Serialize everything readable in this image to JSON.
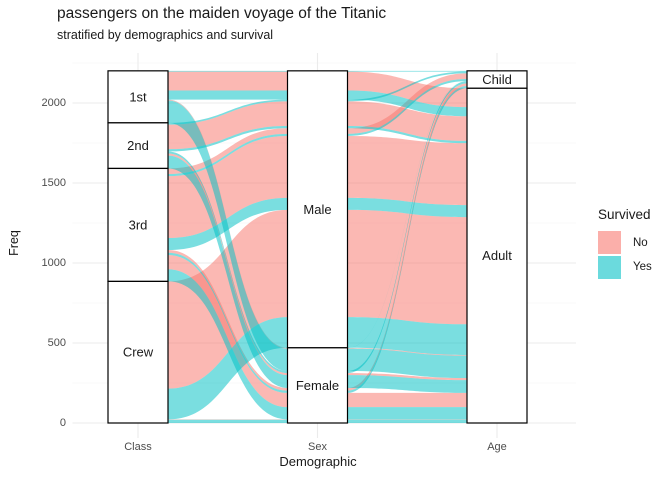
{
  "title": "passengers on the maiden voyage of the Titanic",
  "subtitle": "stratified by demographics and survival",
  "chart_data": {
    "type": "alluvial",
    "title": "passengers on the maiden voyage of the Titanic",
    "subtitle": "stratified by demographics and survival",
    "xlabel": "Demographic",
    "ylabel": "Freq",
    "yticks": [
      0,
      500,
      1000,
      1500,
      2000
    ],
    "y_minor": [
      250,
      750,
      1250,
      1750,
      2250
    ],
    "ylim": [
      0,
      2201
    ],
    "total": 2201,
    "grid": "on",
    "legend_position": "right",
    "axes": [
      {
        "name": "Class",
        "strata": [
          "1st",
          "2nd",
          "3rd",
          "Crew"
        ],
        "totals": [
          325,
          285,
          706,
          885
        ]
      },
      {
        "name": "Sex",
        "strata": [
          "Male",
          "Female"
        ],
        "totals": [
          1731,
          470
        ]
      },
      {
        "name": "Age",
        "strata": [
          "Child",
          "Adult"
        ],
        "totals": [
          109,
          2092
        ]
      }
    ],
    "legend": {
      "title": "Survived",
      "entries": [
        {
          "label": "No",
          "color": "#F8766D"
        },
        {
          "label": "Yes",
          "color": "#00BFC4"
        }
      ]
    },
    "rows": [
      {
        "Class": "3rd",
        "Sex": "Male",
        "Age": "Child",
        "Survived": "No",
        "Freq": 35
      },
      {
        "Class": "3rd",
        "Sex": "Female",
        "Age": "Child",
        "Survived": "No",
        "Freq": 17
      },
      {
        "Class": "1st",
        "Sex": "Male",
        "Age": "Adult",
        "Survived": "No",
        "Freq": 118
      },
      {
        "Class": "2nd",
        "Sex": "Male",
        "Age": "Adult",
        "Survived": "No",
        "Freq": 154
      },
      {
        "Class": "3rd",
        "Sex": "Male",
        "Age": "Adult",
        "Survived": "No",
        "Freq": 387
      },
      {
        "Class": "Crew",
        "Sex": "Male",
        "Age": "Adult",
        "Survived": "No",
        "Freq": 670
      },
      {
        "Class": "1st",
        "Sex": "Female",
        "Age": "Adult",
        "Survived": "No",
        "Freq": 4
      },
      {
        "Class": "2nd",
        "Sex": "Female",
        "Age": "Adult",
        "Survived": "No",
        "Freq": 13
      },
      {
        "Class": "3rd",
        "Sex": "Female",
        "Age": "Adult",
        "Survived": "No",
        "Freq": 89
      },
      {
        "Class": "Crew",
        "Sex": "Female",
        "Age": "Adult",
        "Survived": "No",
        "Freq": 3
      },
      {
        "Class": "1st",
        "Sex": "Male",
        "Age": "Child",
        "Survived": "Yes",
        "Freq": 5
      },
      {
        "Class": "2nd",
        "Sex": "Male",
        "Age": "Child",
        "Survived": "Yes",
        "Freq": 11
      },
      {
        "Class": "3rd",
        "Sex": "Male",
        "Age": "Child",
        "Survived": "Yes",
        "Freq": 13
      },
      {
        "Class": "1st",
        "Sex": "Female",
        "Age": "Child",
        "Survived": "Yes",
        "Freq": 1
      },
      {
        "Class": "2nd",
        "Sex": "Female",
        "Age": "Child",
        "Survived": "Yes",
        "Freq": 13
      },
      {
        "Class": "3rd",
        "Sex": "Female",
        "Age": "Child",
        "Survived": "Yes",
        "Freq": 14
      },
      {
        "Class": "1st",
        "Sex": "Male",
        "Age": "Adult",
        "Survived": "Yes",
        "Freq": 57
      },
      {
        "Class": "2nd",
        "Sex": "Male",
        "Age": "Adult",
        "Survived": "Yes",
        "Freq": 14
      },
      {
        "Class": "3rd",
        "Sex": "Male",
        "Age": "Adult",
        "Survived": "Yes",
        "Freq": 75
      },
      {
        "Class": "Crew",
        "Sex": "Male",
        "Age": "Adult",
        "Survived": "Yes",
        "Freq": 192
      },
      {
        "Class": "1st",
        "Sex": "Female",
        "Age": "Adult",
        "Survived": "Yes",
        "Freq": 140
      },
      {
        "Class": "2nd",
        "Sex": "Female",
        "Age": "Adult",
        "Survived": "Yes",
        "Freq": 80
      },
      {
        "Class": "3rd",
        "Sex": "Female",
        "Age": "Adult",
        "Survived": "Yes",
        "Freq": 76
      },
      {
        "Class": "Crew",
        "Sex": "Female",
        "Age": "Adult",
        "Survived": "Yes",
        "Freq": 20
      }
    ]
  }
}
